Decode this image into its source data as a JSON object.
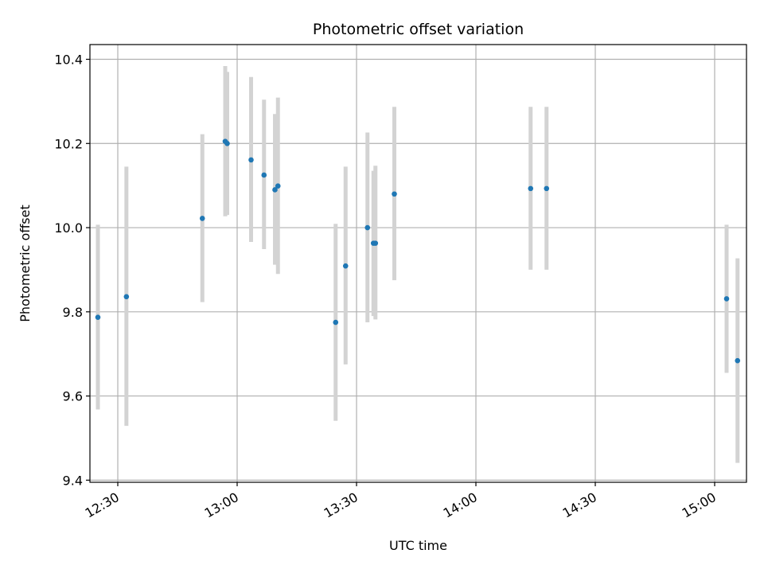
{
  "chart_data": {
    "type": "scatter",
    "title": "Photometric offset variation",
    "xlabel": "UTC time",
    "ylabel": "Photometric offset",
    "x_axis_type": "time",
    "xlim": [
      "12:23",
      "15:08"
    ],
    "ylim": [
      9.395,
      10.435
    ],
    "x_ticks": [
      "12:30",
      "13:00",
      "13:30",
      "14:00",
      "14:30",
      "15:00"
    ],
    "y_ticks": [
      9.4,
      9.6,
      9.8,
      10.0,
      10.2,
      10.4
    ],
    "y_tick_labels": [
      "9.4",
      "9.6",
      "9.8",
      "10.0",
      "10.2",
      "10.4"
    ],
    "grid": true,
    "point_color": "#1f77b4",
    "errorbar_color": "#d3d3d3",
    "points": [
      {
        "time": "12:25:00",
        "y": 9.787,
        "yerr_low": 9.568,
        "yerr_high": 10.007
      },
      {
        "time": "12:32:10",
        "y": 9.836,
        "yerr_low": 9.529,
        "yerr_high": 10.145
      },
      {
        "time": "12:51:15",
        "y": 10.022,
        "yerr_low": 9.823,
        "yerr_high": 10.222
      },
      {
        "time": "12:57:00",
        "y": 10.205,
        "yerr_low": 10.027,
        "yerr_high": 10.384
      },
      {
        "time": "12:57:30",
        "y": 10.2,
        "yerr_low": 10.03,
        "yerr_high": 10.37
      },
      {
        "time": "13:03:30",
        "y": 10.161,
        "yerr_low": 9.966,
        "yerr_high": 10.358
      },
      {
        "time": "13:06:45",
        "y": 10.125,
        "yerr_low": 9.949,
        "yerr_high": 10.304
      },
      {
        "time": "13:09:30",
        "y": 10.09,
        "yerr_low": 9.912,
        "yerr_high": 10.27
      },
      {
        "time": "13:10:15",
        "y": 10.099,
        "yerr_low": 9.89,
        "yerr_high": 10.309
      },
      {
        "time": "13:24:45",
        "y": 9.775,
        "yerr_low": 9.541,
        "yerr_high": 10.009
      },
      {
        "time": "13:27:15",
        "y": 9.909,
        "yerr_low": 9.675,
        "yerr_high": 10.145
      },
      {
        "time": "13:32:45",
        "y": 10.0,
        "yerr_low": 9.775,
        "yerr_high": 10.226
      },
      {
        "time": "13:34:15",
        "y": 9.963,
        "yerr_low": 9.79,
        "yerr_high": 10.135
      },
      {
        "time": "13:34:45",
        "y": 9.963,
        "yerr_low": 9.782,
        "yerr_high": 10.147
      },
      {
        "time": "13:39:30",
        "y": 10.08,
        "yerr_low": 9.875,
        "yerr_high": 10.287
      },
      {
        "time": "14:13:45",
        "y": 10.093,
        "yerr_low": 9.9,
        "yerr_high": 10.287
      },
      {
        "time": "14:17:45",
        "y": 10.093,
        "yerr_low": 9.9,
        "yerr_high": 10.287
      },
      {
        "time": "15:03:00",
        "y": 9.831,
        "yerr_low": 9.655,
        "yerr_high": 10.007
      },
      {
        "time": "15:05:45",
        "y": 9.684,
        "yerr_low": 9.441,
        "yerr_high": 9.927
      }
    ]
  }
}
